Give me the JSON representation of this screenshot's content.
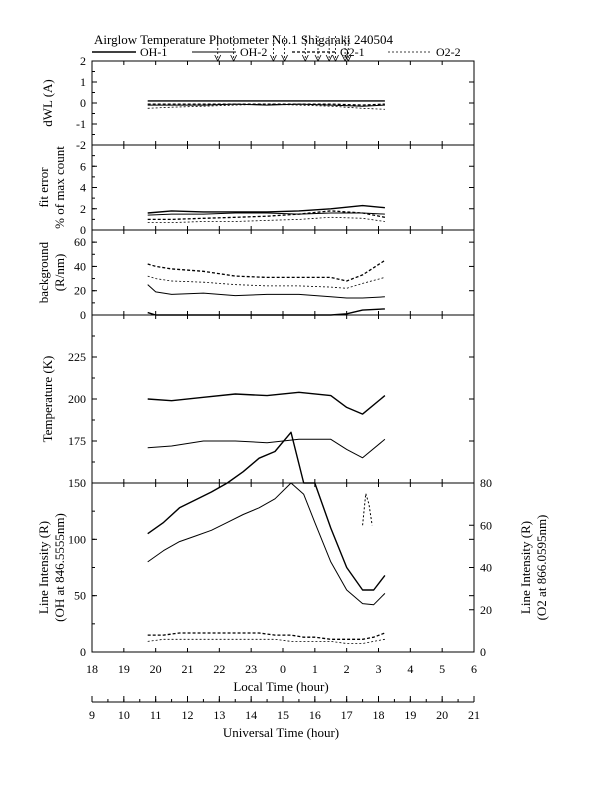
{
  "title": "Airglow Temperature Photometer No.1  Shigaraki  240504",
  "legend": [
    {
      "name": "OH-1",
      "dash": "",
      "width": 1.4
    },
    {
      "name": "OH-2",
      "dash": "",
      "width": 1.0
    },
    {
      "name": "O2-1",
      "dash": "3,2",
      "width": 1.3
    },
    {
      "name": "O2-2",
      "dash": "2,2",
      "width": 0.8
    }
  ],
  "axes": {
    "local_label": "Local Time (hour)",
    "universal_label": "Universal Time (hour)",
    "local_ticks": [
      "18",
      "19",
      "20",
      "21",
      "22",
      "23",
      "0",
      "1",
      "2",
      "3",
      "4",
      "5",
      "6"
    ],
    "universal_ticks": [
      "9",
      "10",
      "11",
      "12",
      "13",
      "14",
      "15",
      "16",
      "17",
      "18",
      "19",
      "20",
      "21"
    ]
  },
  "cloud_markers_lt": [
    21.95,
    22.45,
    23.7,
    24.05,
    24.7,
    25.1,
    25.45,
    25.65,
    25.95,
    26.05
  ],
  "chart_data": [
    {
      "type": "line",
      "panel": "dwl",
      "ylabel": "dWL  (A)",
      "ylim": [
        -2,
        2
      ],
      "yticks": [
        "-2",
        "-1",
        "0",
        "1",
        "2"
      ],
      "x": [
        19.75,
        20.5,
        21.5,
        22.5,
        23.5,
        24.5,
        25.5,
        26.5,
        27.2
      ],
      "series": [
        {
          "name": "OH-1",
          "values": [
            0.1,
            0.1,
            0.1,
            0.1,
            0.1,
            0.1,
            0.1,
            0.1,
            0.1
          ]
        },
        {
          "name": "OH-2",
          "values": [
            -0.1,
            -0.1,
            -0.1,
            -0.05,
            -0.1,
            -0.05,
            -0.1,
            -0.15,
            -0.1
          ]
        },
        {
          "name": "O2-1",
          "values": [
            -0.05,
            -0.05,
            -0.05,
            -0.05,
            -0.05,
            -0.05,
            -0.05,
            -0.1,
            -0.05
          ]
        },
        {
          "name": "O2-2",
          "values": [
            -0.25,
            -0.2,
            -0.15,
            -0.1,
            -0.05,
            -0.1,
            -0.15,
            -0.25,
            -0.3
          ]
        }
      ]
    },
    {
      "type": "line",
      "panel": "fit_error",
      "ylabel": "fit error",
      "ylabel2": "% of max count",
      "ylim": [
        0,
        8
      ],
      "yticks": [
        "0",
        "2",
        "4",
        "6"
      ],
      "x": [
        19.75,
        20.5,
        21.5,
        22.5,
        23.5,
        24.5,
        25.5,
        26.5,
        27.2
      ],
      "series": [
        {
          "name": "OH-1",
          "values": [
            1.6,
            1.8,
            1.7,
            1.7,
            1.7,
            1.8,
            2.0,
            2.3,
            2.1
          ]
        },
        {
          "name": "OH-2",
          "values": [
            1.4,
            1.5,
            1.5,
            1.6,
            1.6,
            1.5,
            1.6,
            1.6,
            1.5
          ]
        },
        {
          "name": "O2-1",
          "values": [
            1.0,
            1.0,
            1.1,
            1.2,
            1.3,
            1.5,
            1.8,
            1.6,
            1.2
          ]
        },
        {
          "name": "O2-2",
          "values": [
            0.7,
            0.7,
            0.8,
            0.8,
            0.9,
            1.0,
            1.2,
            1.1,
            0.8
          ]
        }
      ]
    },
    {
      "type": "line",
      "panel": "background",
      "ylabel": "background",
      "ylabel2": "(R/nm)",
      "ylim": [
        0,
        70
      ],
      "yticks": [
        "0",
        "20",
        "40",
        "60"
      ],
      "x": [
        19.75,
        20.0,
        20.5,
        21.5,
        22.5,
        23.5,
        24.5,
        25.5,
        26.0,
        26.5,
        27.2
      ],
      "series": [
        {
          "name": "OH-1",
          "values": [
            2,
            0,
            0,
            0,
            0,
            0,
            0,
            0,
            1,
            4,
            5
          ]
        },
        {
          "name": "OH-2",
          "values": [
            25,
            19,
            17,
            18,
            16,
            17,
            17,
            15,
            14,
            14,
            15
          ]
        },
        {
          "name": "O2-1",
          "values": [
            42,
            40,
            38,
            36,
            32,
            31,
            31,
            31,
            28,
            33,
            45
          ]
        },
        {
          "name": "O2-2",
          "values": [
            32,
            30,
            28,
            27,
            25,
            24,
            24,
            23,
            22,
            26,
            31
          ]
        }
      ]
    },
    {
      "type": "line",
      "panel": "temperature",
      "ylabel": "Temperature (K)",
      "ylim": [
        150,
        250
      ],
      "yticks": [
        "175",
        "200",
        "225"
      ],
      "x": [
        19.75,
        20.5,
        21.5,
        22.5,
        23.5,
        24.5,
        25.5,
        26.0,
        26.5,
        27.2
      ],
      "series": [
        {
          "name": "OH-1",
          "values": [
            200,
            199,
            201,
            203,
            202,
            204,
            202,
            195,
            191,
            202
          ]
        },
        {
          "name": "OH-2",
          "values": [
            171,
            172,
            175,
            175,
            174,
            176,
            176,
            170,
            165,
            176
          ]
        }
      ]
    },
    {
      "type": "line",
      "panel": "line_intensity",
      "ylabel": "Line Intensity (R)",
      "ylabel2": "(OH at 846.5555nm)",
      "ylabel_right": "Line Intensity (R)",
      "ylabel_right2": "(O2 at 866.0595nm)",
      "ylim": [
        0,
        150
      ],
      "yticks": [
        "0",
        "50",
        "100",
        "150"
      ],
      "ylim_right": [
        0,
        80
      ],
      "yticks_right": [
        "0",
        "20",
        "40",
        "60",
        "80"
      ],
      "x": [
        19.75,
        20.25,
        20.75,
        21.25,
        21.75,
        22.25,
        22.75,
        23.25,
        23.75,
        24.25,
        24.65,
        25.0,
        25.5,
        26.0,
        26.5,
        26.85,
        27.2
      ],
      "series": [
        {
          "name": "OH-1",
          "values": [
            105,
            115,
            128,
            135,
            142,
            150,
            160,
            172,
            178,
            195,
            150,
            150,
            110,
            75,
            55,
            55,
            68
          ]
        },
        {
          "name": "OH-2",
          "values": [
            80,
            90,
            98,
            103,
            108,
            115,
            122,
            128,
            136,
            150,
            140,
            115,
            80,
            55,
            43,
            42,
            52
          ]
        },
        {
          "name": "O2-1",
          "axis": "right",
          "values": [
            8,
            8,
            9,
            9,
            9,
            9,
            9,
            9,
            8,
            8,
            7,
            7,
            6,
            6,
            6,
            7,
            9
          ]
        },
        {
          "name": "O2-2",
          "axis": "right",
          "values": [
            5,
            6,
            6,
            6,
            6,
            6,
            6,
            6,
            6,
            5,
            5,
            5,
            5,
            4,
            4,
            5,
            6
          ]
        }
      ],
      "reference_line_oh": 150,
      "o2_spike": {
        "x": [
          26.5,
          26.6,
          26.7,
          26.8
        ],
        "values": [
          60,
          75,
          70,
          60
        ]
      }
    }
  ]
}
